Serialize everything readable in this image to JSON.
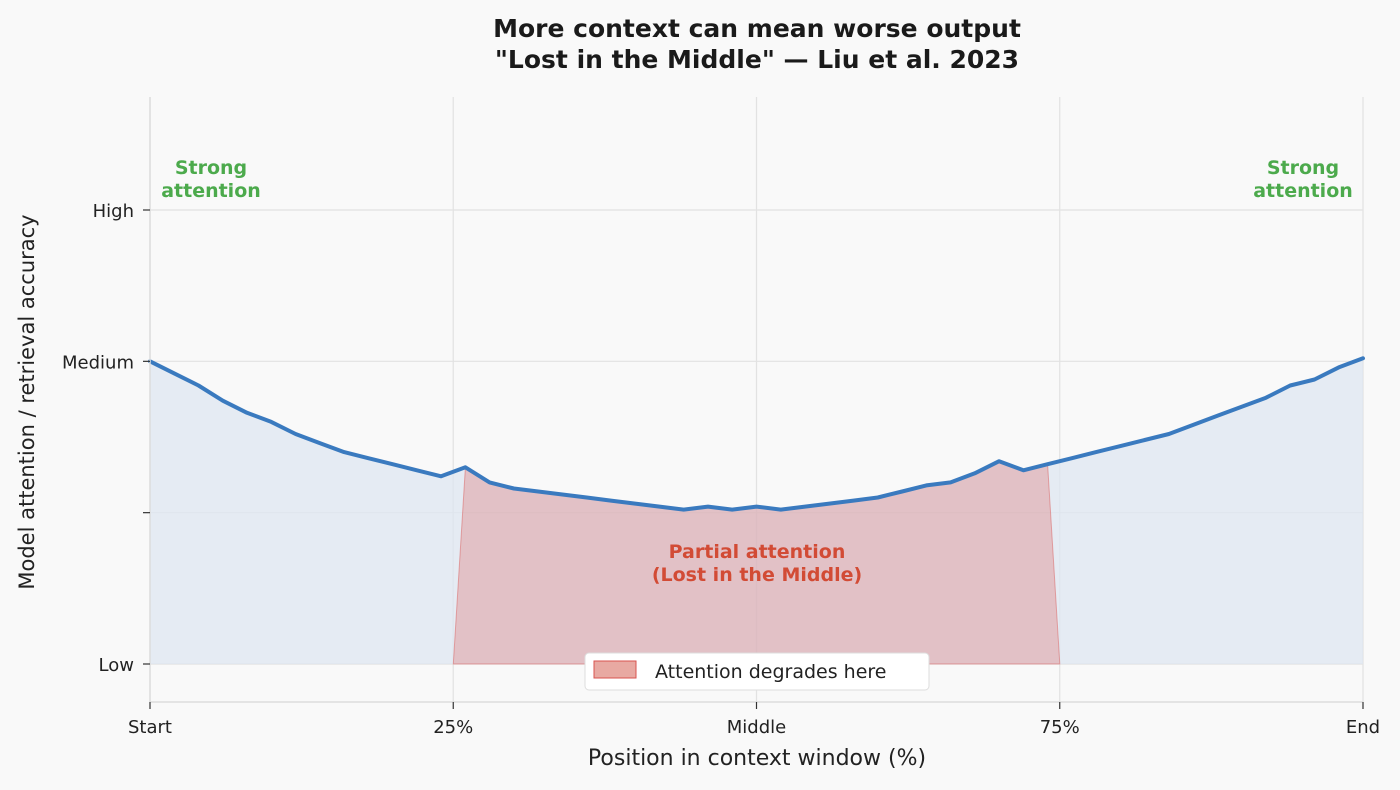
{
  "chart_data": {
    "type": "line",
    "title": "More context can mean worse output",
    "subtitle": "\"Lost in the Middle\" — Liu et al. 2023",
    "xlabel": "Position in context window (%)",
    "ylabel": "Model attention / retrieval accuracy",
    "xlim": [
      0,
      100
    ],
    "ylim": [
      0,
      1.5
    ],
    "x_ticks": [
      0,
      25,
      50,
      75,
      100
    ],
    "x_tick_labels": [
      "Start",
      "25%",
      "Middle",
      "75%",
      "End"
    ],
    "y_ticks": [
      0,
      0.5,
      1.0,
      1.5
    ],
    "y_tick_labels": [
      "Low",
      "",
      "Medium",
      "High"
    ],
    "grid": true,
    "series": [
      {
        "color": "#3a7abf",
        "x": [
          0,
          2,
          4,
          6,
          8,
          10,
          12,
          14,
          16,
          18,
          20,
          22,
          24,
          26,
          28,
          30,
          32,
          34,
          36,
          38,
          40,
          42,
          44,
          46,
          48,
          50,
          52,
          54,
          56,
          58,
          60,
          62,
          64,
          66,
          68,
          70,
          72,
          74,
          76,
          78,
          80,
          82,
          84,
          86,
          88,
          90,
          92,
          94,
          96,
          98,
          100
        ],
        "y": [
          1.0,
          0.96,
          0.92,
          0.87,
          0.83,
          0.8,
          0.76,
          0.73,
          0.7,
          0.68,
          0.66,
          0.64,
          0.62,
          0.65,
          0.6,
          0.58,
          0.57,
          0.56,
          0.55,
          0.54,
          0.53,
          0.52,
          0.51,
          0.52,
          0.51,
          0.52,
          0.51,
          0.52,
          0.53,
          0.54,
          0.55,
          0.57,
          0.59,
          0.6,
          0.63,
          0.67,
          0.64,
          0.66,
          0.68,
          0.7,
          0.72,
          0.74,
          0.76,
          0.79,
          0.82,
          0.85,
          0.88,
          0.92,
          0.94,
          0.98,
          1.01
        ]
      }
    ],
    "shaded_region": {
      "x": [
        25,
        75
      ],
      "color": "#d9534f",
      "label": "Attention degrades here"
    },
    "annotations": [
      {
        "text": "Strong attention",
        "position": "top-left",
        "color": "#4caa4c"
      },
      {
        "text": "Strong attention",
        "position": "top-right",
        "color": "#4caa4c"
      },
      {
        "text": "Partial attention (Lost in the Middle)",
        "position": "center",
        "color": "#d24b35"
      }
    ],
    "legend_placement": "bottom-center"
  },
  "labels": {
    "strong_left_1": "Strong",
    "strong_left_2": "attention",
    "strong_right_1": "Strong",
    "strong_right_2": "attention",
    "partial_1": "Partial attention",
    "partial_2": "(Lost in the Middle)",
    "legend": "Attention degrades here"
  }
}
